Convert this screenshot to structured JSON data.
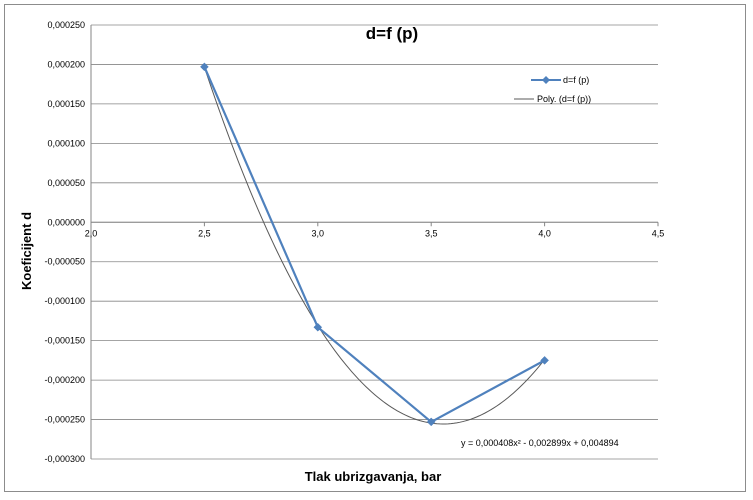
{
  "chart_data": {
    "type": "line",
    "title": "d=f (p)",
    "xlabel": "Tlak ubrizgavanja, bar",
    "ylabel": "Koeficijent d",
    "xlim": [
      2.0,
      4.5
    ],
    "ylim": [
      -0.0003,
      0.00025
    ],
    "x_ticks": [
      "2,0",
      "2,5",
      "3,0",
      "3,5",
      "4,0",
      "4,5"
    ],
    "y_ticks": [
      "0,000250",
      "0,000200",
      "0,000150",
      "0,000100",
      "0,000050",
      "0,000000",
      "-0,000050",
      "-0,000100",
      "-0,000150",
      "-0,000200",
      "-0,000250",
      "-0,000300"
    ],
    "grid": true,
    "legend_position": "top-right",
    "series": [
      {
        "name": "d=f (p)",
        "x": [
          2.5,
          3.0,
          3.5,
          4.0
        ],
        "y": [
          0.000197,
          -0.000133,
          -0.000253,
          -0.000175
        ],
        "color": "#4f81bd",
        "marker": "diamond"
      },
      {
        "name": "Poly. (d=f (p))",
        "type": "polynomial-trendline",
        "coefficients": [
          0.000408,
          -0.002899,
          0.004894
        ],
        "x_range": [
          2.5,
          4.0
        ],
        "color": "#595959"
      }
    ],
    "annotations": [
      {
        "text": "y = 0,000408x² - 0,002899x + 0,004894"
      }
    ]
  }
}
